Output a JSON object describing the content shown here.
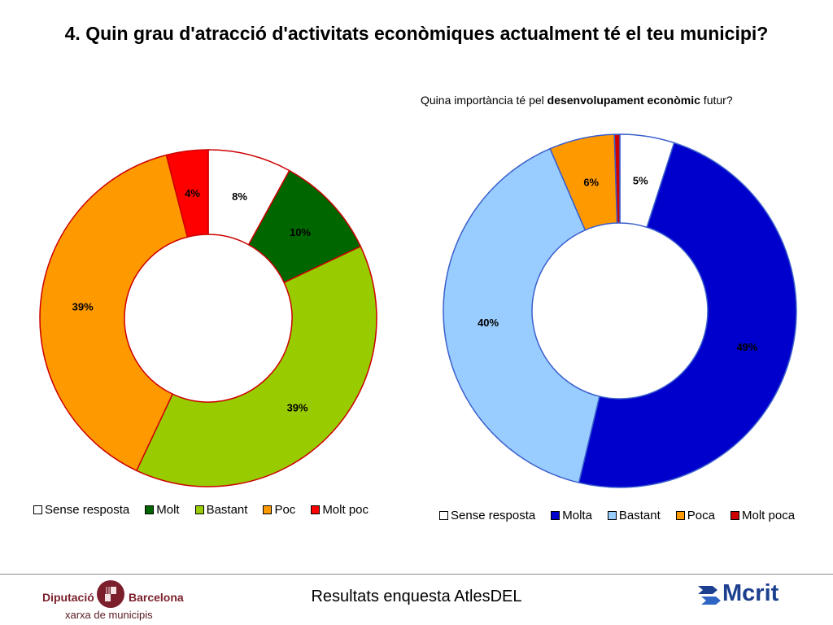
{
  "title": "4. Quin grau d'atracció d'activitats econòmiques actualment té el teu municipi?",
  "right_subtitle": {
    "prefix": "Quina importància té pel ",
    "bold": "desenvolupament econòmic",
    "suffix": " futur?"
  },
  "chart_data": [
    {
      "type": "pie",
      "donut": true,
      "title": "",
      "categories": [
        "Sense resposta",
        "Molt",
        "Bastant",
        "Poc",
        "Molt poc"
      ],
      "values": [
        8,
        10,
        39,
        39,
        4
      ],
      "labels": [
        "8%",
        "10%",
        "39%",
        "39%",
        "4%"
      ],
      "colors": [
        "#ffffff",
        "#006600",
        "#99cc00",
        "#ff9900",
        "#ff0000"
      ],
      "legend_position": "bottom"
    },
    {
      "type": "pie",
      "donut": true,
      "title": "",
      "categories": [
        "Sense resposta",
        "Molta",
        "Bastant",
        "Poca",
        "Molt poca"
      ],
      "values": [
        5,
        49,
        40,
        6,
        0.5
      ],
      "labels": [
        "5%",
        "49%",
        "40%",
        "6%",
        ""
      ],
      "colors": [
        "#ffffff",
        "#0000cc",
        "#99ccff",
        "#ff9900",
        "#cc0000"
      ],
      "legend_position": "bottom"
    }
  ],
  "footer": {
    "center_text": "Resultats enquesta AtlesDEL",
    "left_logo": {
      "word1": "Diputació",
      "word2": "Barcelona",
      "sub": "xarxa de municipis",
      "icon": "diputacio-crest-icon"
    },
    "right_logo": {
      "text": "Mcrit",
      "icon": "mcrit-arrows-icon"
    }
  }
}
